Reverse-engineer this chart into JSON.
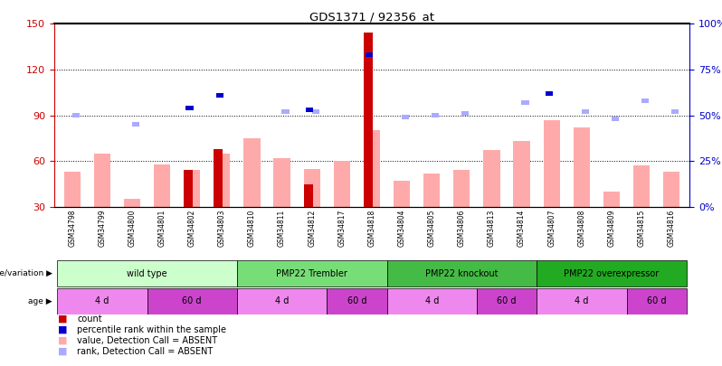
{
  "title": "GDS1371 / 92356_at",
  "samples": [
    "GSM34798",
    "GSM34799",
    "GSM34800",
    "GSM34801",
    "GSM34802",
    "GSM34803",
    "GSM34810",
    "GSM34811",
    "GSM34812",
    "GSM34817",
    "GSM34818",
    "GSM34804",
    "GSM34805",
    "GSM34806",
    "GSM34813",
    "GSM34814",
    "GSM34807",
    "GSM34808",
    "GSM34809",
    "GSM34815",
    "GSM34816"
  ],
  "count": [
    null,
    null,
    null,
    null,
    54,
    68,
    null,
    null,
    45,
    null,
    144,
    null,
    null,
    null,
    null,
    null,
    null,
    null,
    null,
    null,
    null
  ],
  "percentile_rank": [
    null,
    null,
    null,
    null,
    54,
    61,
    null,
    null,
    53,
    null,
    83,
    null,
    null,
    null,
    null,
    null,
    62,
    null,
    null,
    null,
    null
  ],
  "value_absent": [
    53,
    65,
    35,
    58,
    54,
    65,
    75,
    62,
    55,
    60,
    80,
    47,
    52,
    54,
    67,
    73,
    87,
    82,
    40,
    57,
    53
  ],
  "rank_absent": [
    50,
    null,
    45,
    null,
    null,
    null,
    null,
    52,
    52,
    null,
    null,
    49,
    50,
    51,
    null,
    57,
    null,
    52,
    48,
    58,
    52
  ],
  "left_ylim": [
    30,
    150
  ],
  "right_ylim": [
    0,
    100
  ],
  "left_yticks": [
    30,
    60,
    90,
    120,
    150
  ],
  "right_yticks": [
    0,
    25,
    50,
    75,
    100
  ],
  "color_count": "#cc0000",
  "color_percentile": "#0000cc",
  "color_value_absent": "#ffaaaa",
  "color_rank_absent": "#aaaaff",
  "left_axis_color": "#cc0000",
  "right_axis_color": "#0000cc",
  "background_color": "#ffffff",
  "geno_groups": [
    {
      "label": "wild type",
      "start": 0,
      "end": 5,
      "color": "#ccffcc"
    },
    {
      "label": "PMP22 Trembler",
      "start": 6,
      "end": 10,
      "color": "#77dd77"
    },
    {
      "label": "PMP22 knockout",
      "start": 11,
      "end": 15,
      "color": "#44bb44"
    },
    {
      "label": "PMP22 overexpressor",
      "start": 16,
      "end": 20,
      "color": "#22aa22"
    }
  ],
  "age_groups": [
    {
      "label": "4 d",
      "start": 0,
      "end": 2,
      "color": "#ee88ee"
    },
    {
      "label": "60 d",
      "start": 3,
      "end": 5,
      "color": "#cc44cc"
    },
    {
      "label": "4 d",
      "start": 6,
      "end": 8,
      "color": "#ee88ee"
    },
    {
      "label": "60 d",
      "start": 9,
      "end": 10,
      "color": "#cc44cc"
    },
    {
      "label": "4 d",
      "start": 11,
      "end": 13,
      "color": "#ee88ee"
    },
    {
      "label": "60 d",
      "start": 14,
      "end": 15,
      "color": "#cc44cc"
    },
    {
      "label": "4 d",
      "start": 16,
      "end": 18,
      "color": "#ee88ee"
    },
    {
      "label": "60 d",
      "start": 19,
      "end": 20,
      "color": "#cc44cc"
    }
  ]
}
